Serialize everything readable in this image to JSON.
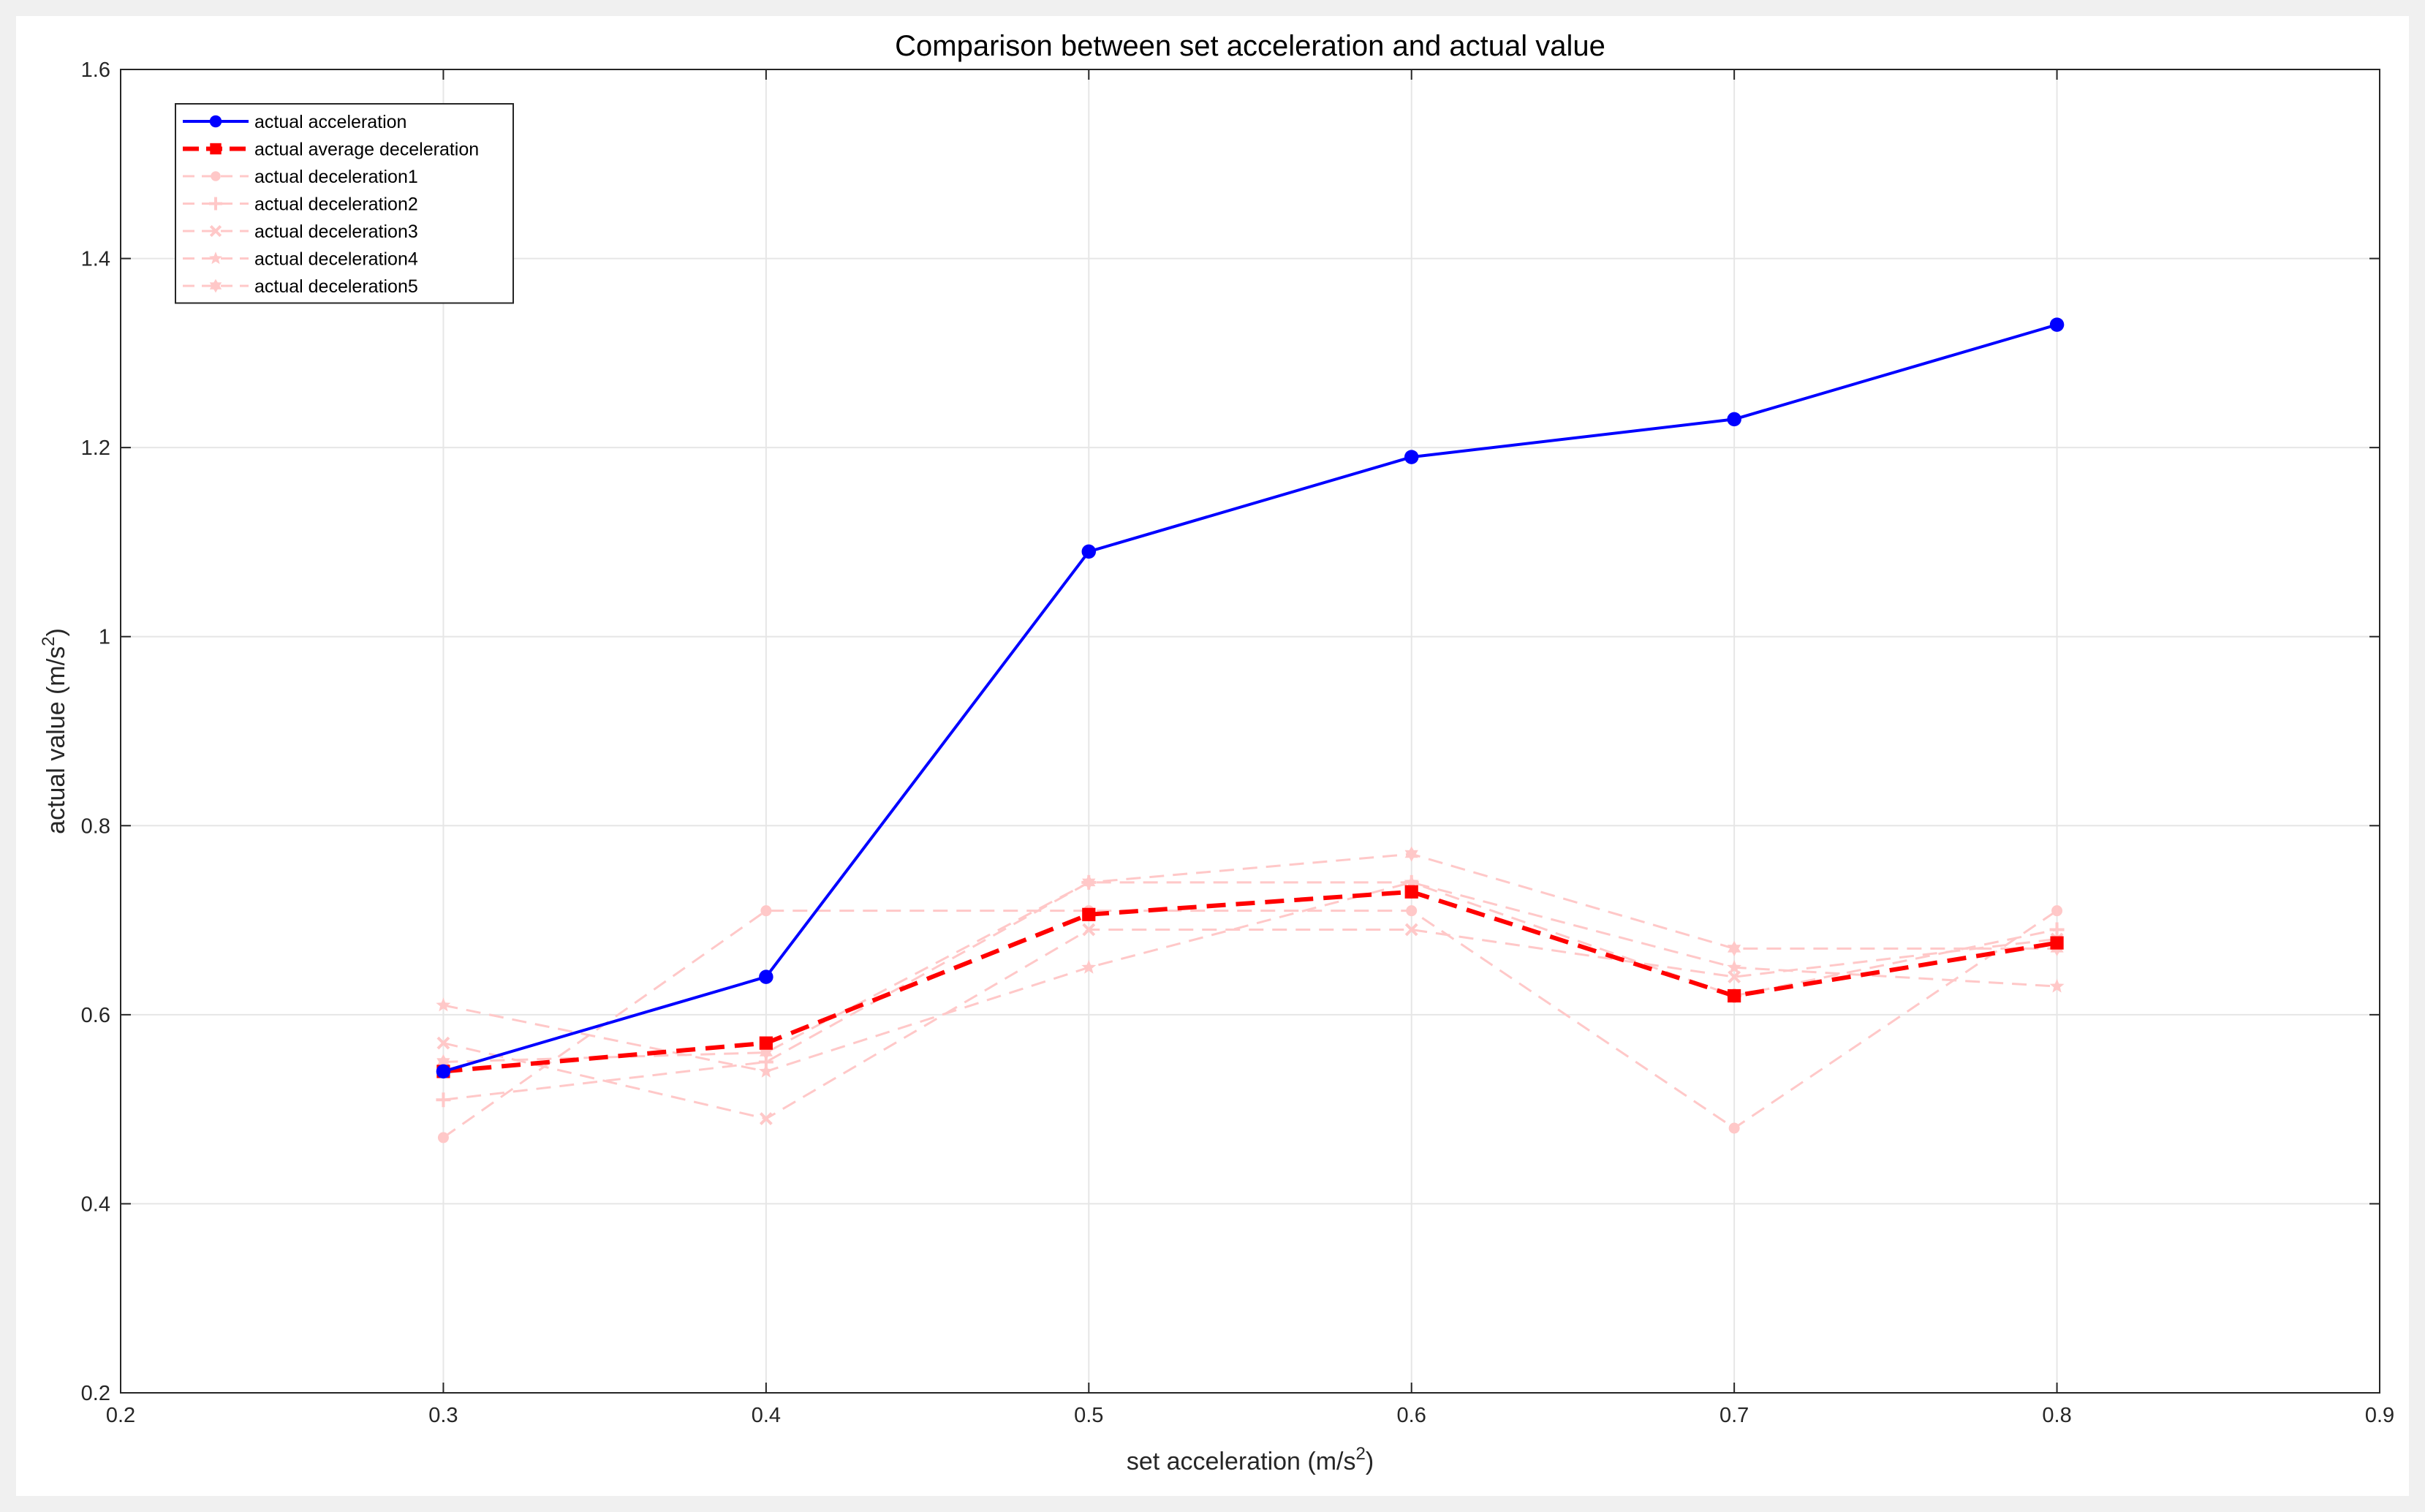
{
  "chart_data": {
    "type": "line",
    "title": "Comparison between set acceleration and actual value",
    "xlabel": {
      "text": "set acceleration (m/s",
      "sup": "2",
      "close": ")"
    },
    "ylabel": {
      "text": "actual value (m/s",
      "sup": "2",
      "close": ")"
    },
    "xlim": [
      0.2,
      0.9
    ],
    "ylim": [
      0.2,
      1.6
    ],
    "xticks": [
      0.2,
      0.3,
      0.4,
      0.5,
      0.6,
      0.7,
      0.8,
      0.9
    ],
    "yticks": [
      0.2,
      0.4,
      0.6,
      0.8,
      1.0,
      1.2,
      1.4,
      1.6
    ],
    "xtick_labels": [
      "0.2",
      "0.3",
      "0.4",
      "0.5",
      "0.6",
      "0.7",
      "0.8",
      "0.9"
    ],
    "ytick_labels": [
      "0.2",
      "0.4",
      "0.6",
      "0.8",
      "1",
      "1.2",
      "1.4",
      "1.6"
    ],
    "grid": true,
    "legend_position": "top-left",
    "x": [
      0.3,
      0.4,
      0.5,
      0.6,
      0.7,
      0.8
    ],
    "series": [
      {
        "name": "actual deceleration1",
        "values": [
          0.47,
          0.71,
          0.71,
          0.71,
          0.48,
          0.71
        ],
        "color": "#ffc8c8",
        "marker": "circle",
        "dashed": true,
        "width": 3
      },
      {
        "name": "actual deceleration2",
        "values": [
          0.51,
          0.55,
          0.74,
          0.74,
          0.62,
          0.69
        ],
        "color": "#ffc8c8",
        "marker": "plus",
        "dashed": true,
        "width": 3
      },
      {
        "name": "actual deceleration3",
        "values": [
          0.57,
          0.49,
          0.69,
          0.69,
          0.64,
          0.68
        ],
        "color": "#ffc8c8",
        "marker": "x",
        "dashed": true,
        "width": 3
      },
      {
        "name": "actual deceleration4",
        "values": [
          0.61,
          0.54,
          0.65,
          0.74,
          0.65,
          0.63
        ],
        "color": "#ffc8c8",
        "marker": "star",
        "dashed": true,
        "width": 3
      },
      {
        "name": "actual deceleration5",
        "values": [
          0.55,
          0.56,
          0.74,
          0.77,
          0.67,
          0.67
        ],
        "color": "#ffc8c8",
        "marker": "hexagram",
        "dashed": true,
        "width": 3
      },
      {
        "name": "actual average deceleration",
        "values": [
          0.54,
          0.57,
          0.706,
          0.73,
          0.62,
          0.676
        ],
        "color": "#ff0000",
        "marker": "square",
        "dashed": true,
        "width": 6
      },
      {
        "name": "actual acceleration",
        "values": [
          0.54,
          0.64,
          1.09,
          1.19,
          1.23,
          1.33
        ],
        "color": "#0000ff",
        "marker": "circle",
        "dashed": false,
        "width": 4
      }
    ],
    "legend_order": [
      6,
      5,
      0,
      1,
      2,
      3,
      4
    ]
  }
}
